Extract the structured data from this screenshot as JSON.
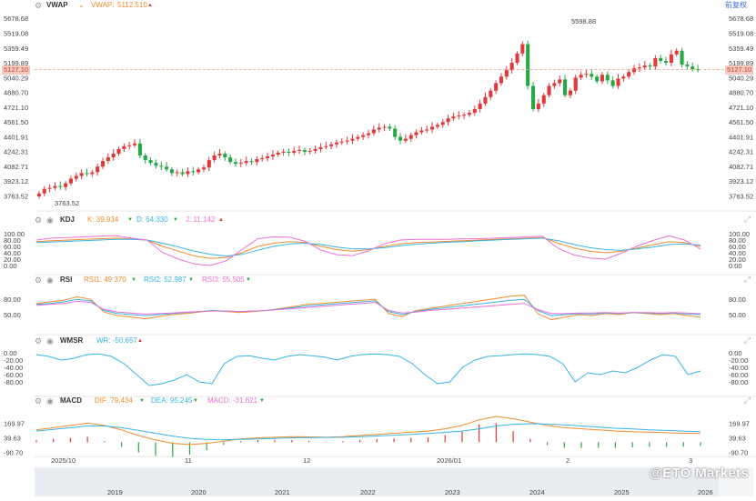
{
  "main_header": {
    "vwap_label": "VWAP",
    "vwap_param": "VWAP:",
    "vwap_value": "5112.510"
  },
  "kdj_header": {
    "label": "KDJ",
    "k": "K: 39.934",
    "d": "D: 54.330",
    "j": "J: 11.142"
  },
  "rsi_header": {
    "label": "RSI",
    "r1": "RSI1: 49.370",
    "r2": "RSI2: 52.987",
    "r3": "RSI3: 55.505"
  },
  "wmsr_header": {
    "label": "WMSR",
    "wr": "WR: -50.657"
  },
  "macd_header": {
    "label": "MACD",
    "dif": "DIF: 79.434",
    "dea": "DEA: 95.245",
    "macd": "MACD: -31.621"
  },
  "toolbar": {
    "adjust": "前复权"
  },
  "last_price": "5127.10",
  "watermark": "@ETO Markets",
  "colors": {
    "up": "#e0393b",
    "down": "#27a844",
    "k": "#f08c2c",
    "d": "#37b4e5",
    "j": "#ee6fd6",
    "wr": "#37b4e5"
  },
  "chart_data": [
    {
      "type": "candlestick",
      "title": "VWAP",
      "y_ticks": [
        "5678.68",
        "5519.08",
        "5359.49",
        "5199.89",
        "5040.29",
        "4880.70",
        "4721.10",
        "4561.50",
        "4401.91",
        "4242.31",
        "4082.71",
        "3923.12",
        "3763.52"
      ],
      "ylim": [
        3700,
        5720
      ],
      "annotations": {
        "high": "5598.88",
        "low": "3763.52",
        "last": "5127.10"
      },
      "x_labels": [
        "2025/10",
        "11",
        "12",
        "2026/01",
        "2",
        "3"
      ],
      "close": [
        3790,
        3840,
        3850,
        3870,
        3860,
        3900,
        3950,
        3980,
        4010,
        4000,
        4020,
        4080,
        4140,
        4180,
        4220,
        4270,
        4300,
        4310,
        4330,
        4200,
        4150,
        4120,
        4090,
        4080,
        4050,
        4010,
        4020,
        4000,
        4030,
        4020,
        4050,
        4070,
        4150,
        4200,
        4220,
        4180,
        4130,
        4110,
        4120,
        4140,
        4130,
        4160,
        4170,
        4190,
        4210,
        4230,
        4240,
        4230,
        4250,
        4260,
        4240,
        4250,
        4270,
        4290,
        4300,
        4320,
        4340,
        4350,
        4360,
        4380,
        4400,
        4420,
        4440,
        4480,
        4500,
        4510,
        4490,
        4400,
        4360,
        4380,
        4420,
        4450,
        4470,
        4480,
        4510,
        4530,
        4560,
        4600,
        4620,
        4630,
        4640,
        4660,
        4700,
        4760,
        4830,
        4900,
        4980,
        5050,
        5120,
        5200,
        5300,
        5400,
        4950,
        4700,
        4760,
        4850,
        4950,
        4980,
        5020,
        4850,
        4900,
        5040,
        5070,
        5080,
        5050,
        5000,
        5070,
        5010,
        4950,
        5030,
        5050,
        5100,
        5140,
        5150,
        5170,
        5160,
        5250,
        5220,
        5200,
        5290,
        5330,
        5180,
        5160,
        5130,
        5127
      ],
      "open": [
        3760,
        3790,
        3840,
        3850,
        3870,
        3860,
        3900,
        3950,
        3980,
        4010,
        4000,
        4020,
        4080,
        4140,
        4180,
        4220,
        4270,
        4300,
        4310,
        4330,
        4200,
        4150,
        4120,
        4090,
        4080,
        4050,
        4010,
        4020,
        4000,
        4030,
        4020,
        4050,
        4070,
        4150,
        4200,
        4220,
        4180,
        4130,
        4110,
        4120,
        4140,
        4130,
        4160,
        4170,
        4190,
        4210,
        4230,
        4240,
        4230,
        4250,
        4260,
        4240,
        4250,
        4270,
        4290,
        4300,
        4320,
        4340,
        4350,
        4360,
        4380,
        4400,
        4420,
        4440,
        4480,
        4500,
        4510,
        4490,
        4400,
        4360,
        4380,
        4420,
        4450,
        4470,
        4480,
        4510,
        4530,
        4560,
        4600,
        4620,
        4630,
        4640,
        4660,
        4700,
        4760,
        4830,
        4900,
        4980,
        5050,
        5120,
        5200,
        5300,
        5400,
        4950,
        4700,
        4760,
        4850,
        4950,
        4980,
        5020,
        4850,
        4900,
        5040,
        5070,
        5080,
        5050,
        5000,
        5070,
        5010,
        4950,
        5030,
        5050,
        5100,
        5140,
        5150,
        5170,
        5160,
        5250,
        5220,
        5200,
        5290,
        5330,
        5180,
        5160,
        5130
      ],
      "series_note": "OHLC"
    },
    {
      "type": "line",
      "title": "KDJ",
      "y_ticks": [
        "100.00",
        "80.00",
        "60.00",
        "40.00",
        "20.00",
        "0.00"
      ],
      "ylim": [
        0,
        100
      ],
      "series": [
        {
          "name": "K",
          "values": [
            75,
            78,
            80,
            82,
            84,
            86,
            83,
            80,
            60,
            45,
            30,
            22,
            25,
            40,
            60,
            70,
            75,
            72,
            60,
            50,
            45,
            50,
            60,
            68,
            72,
            74,
            76,
            78,
            80,
            82,
            84,
            86,
            88,
            70,
            55,
            45,
            40,
            45,
            55,
            65,
            75,
            72,
            60
          ]
        },
        {
          "name": "D",
          "values": [
            72,
            74,
            76,
            78,
            80,
            82,
            82,
            80,
            70,
            58,
            45,
            35,
            30,
            35,
            48,
            60,
            68,
            70,
            66,
            58,
            52,
            52,
            56,
            62,
            67,
            70,
            73,
            75,
            78,
            80,
            82,
            84,
            86,
            78,
            66,
            56,
            50,
            48,
            52,
            58,
            66,
            68,
            64
          ]
        },
        {
          "name": "J",
          "values": [
            80,
            86,
            88,
            90,
            92,
            94,
            86,
            80,
            40,
            20,
            5,
            0,
            15,
            50,
            84,
            90,
            89,
            76,
            48,
            34,
            31,
            46,
            68,
            80,
            82,
            82,
            82,
            84,
            84,
            86,
            88,
            90,
            92,
            54,
            33,
            23,
            20,
            39,
            61,
            79,
            93,
            80,
            52
          ]
        }
      ]
    },
    {
      "type": "line",
      "title": "RSI",
      "y_ticks": [
        "80.00",
        "50.00"
      ],
      "ylim": [
        25,
        100
      ],
      "series": [
        {
          "name": "RSI1",
          "values": [
            72,
            75,
            78,
            85,
            80,
            55,
            48,
            45,
            42,
            46,
            50,
            52,
            55,
            58,
            56,
            54,
            56,
            58,
            62,
            66,
            70,
            72,
            74,
            76,
            78,
            80,
            52,
            46,
            58,
            62,
            66,
            70,
            74,
            78,
            82,
            86,
            88,
            52,
            40,
            45,
            50,
            48,
            52,
            50,
            54,
            52,
            50,
            52,
            48,
            45
          ]
        },
        {
          "name": "RSI2",
          "values": [
            70,
            72,
            75,
            80,
            77,
            58,
            52,
            50,
            48,
            50,
            52,
            54,
            56,
            58,
            57,
            56,
            57,
            58,
            61,
            64,
            67,
            69,
            71,
            73,
            75,
            77,
            56,
            50,
            56,
            60,
            63,
            66,
            69,
            72,
            75,
            78,
            80,
            58,
            48,
            50,
            52,
            51,
            53,
            52,
            54,
            53,
            52,
            53,
            51,
            50
          ]
        },
        {
          "name": "RSI3",
          "values": [
            68,
            70,
            72,
            76,
            74,
            60,
            55,
            53,
            51,
            52,
            53,
            55,
            56,
            57,
            57,
            56,
            57,
            58,
            60,
            62,
            64,
            66,
            68,
            70,
            72,
            74,
            58,
            53,
            55,
            58,
            60,
            62,
            64,
            66,
            68,
            70,
            72,
            60,
            52,
            52,
            53,
            53,
            54,
            53,
            54,
            54,
            53,
            54,
            53,
            52
          ]
        }
      ]
    },
    {
      "type": "line",
      "title": "WMSR",
      "y_ticks": [
        "0.00",
        "-20.00",
        "-40.00",
        "-60.00",
        "-80.00"
      ],
      "ylim": [
        -100,
        5
      ],
      "series": [
        {
          "name": "WR",
          "values": [
            -5,
            -10,
            -20,
            -15,
            -5,
            -3,
            -10,
            -30,
            -60,
            -90,
            -85,
            -75,
            -60,
            -80,
            -85,
            -30,
            -10,
            -8,
            -15,
            -20,
            -10,
            -5,
            -8,
            -12,
            -20,
            -10,
            -5,
            -3,
            -5,
            -10,
            -30,
            -60,
            -85,
            -80,
            -40,
            -20,
            -10,
            -8,
            -5,
            -3,
            -5,
            -10,
            -30,
            -80,
            -55,
            -60,
            -50,
            -55,
            -40,
            -20,
            -5,
            -10,
            -60,
            -50
          ]
        }
      ]
    },
    {
      "type": "bar+line",
      "title": "MACD",
      "y_ticks": [
        "169.97",
        "39.63",
        "-90.70"
      ],
      "ylim": [
        -110,
        230
      ],
      "series": [
        {
          "name": "DIF",
          "values": [
            110,
            130,
            150,
            170,
            150,
            110,
            60,
            20,
            -10,
            -20,
            -10,
            10,
            30,
            40,
            45,
            50,
            48,
            45,
            50,
            60,
            70,
            80,
            90,
            100,
            120,
            150,
            200,
            230,
            210,
            180,
            150,
            130,
            120,
            110,
            100,
            95,
            90,
            85,
            80,
            79
          ]
        },
        {
          "name": "DEA",
          "values": [
            100,
            115,
            130,
            145,
            145,
            130,
            105,
            80,
            55,
            35,
            25,
            22,
            25,
            30,
            35,
            40,
            42,
            43,
            45,
            50,
            56,
            63,
            70,
            78,
            88,
            100,
            120,
            145,
            160,
            165,
            162,
            155,
            145,
            135,
            125,
            118,
            110,
            105,
            100,
            95
          ]
        }
      ],
      "histogram": [
        20,
        30,
        40,
        50,
        10,
        -40,
        -90,
        -120,
        -130,
        -110,
        -70,
        -24,
        10,
        20,
        20,
        20,
        12,
        4,
        10,
        20,
        28,
        34,
        40,
        44,
        64,
        100,
        160,
        170,
        100,
        30,
        -24,
        -50,
        -50,
        -50,
        -50,
        -46,
        -40,
        -40,
        -40,
        -32
      ]
    }
  ],
  "bottom_axis": {
    "years": [
      "2019",
      "2020",
      "2021",
      "2022",
      "2023",
      "2024",
      "2025",
      "2026"
    ]
  }
}
